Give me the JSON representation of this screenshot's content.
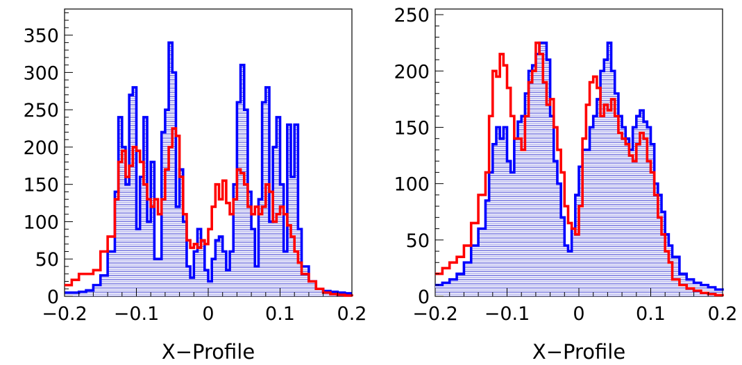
{
  "chart_data": [
    {
      "type": "histogram",
      "xlabel": "X−Profile",
      "ylabel": "",
      "xlim": [
        -0.2,
        0.2
      ],
      "ylim": [
        0,
        385
      ],
      "x_ticks": [
        -0.2,
        -0.1,
        0,
        0.1,
        0.2
      ],
      "x_tick_labels": [
        "−0.2",
        "−0.1",
        "0",
        "0.1",
        "0.2"
      ],
      "y_ticks": [
        0,
        50,
        100,
        150,
        200,
        250,
        300,
        350
      ],
      "y_tick_labels": [
        "0",
        "50",
        "100",
        "150",
        "200",
        "250",
        "300",
        "350"
      ],
      "grid": false,
      "series": [
        {
          "color": "#0000ff",
          "fill": "hatched",
          "x": [
            -0.2,
            -0.19,
            -0.18,
            -0.17,
            -0.16,
            -0.15,
            -0.14,
            -0.13,
            -0.125,
            -0.12,
            -0.115,
            -0.11,
            -0.105,
            -0.1,
            -0.095,
            -0.09,
            -0.085,
            -0.08,
            -0.075,
            -0.07,
            -0.065,
            -0.06,
            -0.055,
            -0.05,
            -0.045,
            -0.04,
            -0.035,
            -0.03,
            -0.025,
            -0.02,
            -0.015,
            -0.01,
            -0.005,
            0,
            0.005,
            0.01,
            0.015,
            0.02,
            0.025,
            0.03,
            0.035,
            0.04,
            0.045,
            0.05,
            0.055,
            0.06,
            0.065,
            0.07,
            0.075,
            0.08,
            0.085,
            0.09,
            0.095,
            0.1,
            0.105,
            0.11,
            0.115,
            0.12,
            0.125,
            0.13,
            0.14,
            0.15,
            0.16,
            0.17,
            0.18,
            0.19,
            0.2
          ],
          "y": [
            5,
            5,
            6,
            8,
            15,
            28,
            60,
            140,
            240,
            200,
            150,
            270,
            280,
            90,
            160,
            240,
            100,
            180,
            50,
            50,
            220,
            250,
            340,
            300,
            120,
            170,
            100,
            40,
            25,
            60,
            90,
            75,
            35,
            20,
            50,
            75,
            80,
            60,
            35,
            60,
            150,
            260,
            310,
            250,
            140,
            90,
            40,
            130,
            260,
            280,
            100,
            200,
            240,
            150,
            60,
            230,
            160,
            230,
            90,
            40,
            20,
            10,
            7,
            6,
            5,
            4,
            4
          ]
        },
        {
          "color": "#ff0000",
          "fill": "none",
          "x": [
            -0.2,
            -0.19,
            -0.18,
            -0.17,
            -0.16,
            -0.15,
            -0.14,
            -0.13,
            -0.125,
            -0.12,
            -0.115,
            -0.11,
            -0.105,
            -0.1,
            -0.095,
            -0.09,
            -0.085,
            -0.08,
            -0.075,
            -0.07,
            -0.065,
            -0.06,
            -0.055,
            -0.05,
            -0.045,
            -0.04,
            -0.035,
            -0.03,
            -0.025,
            -0.02,
            -0.015,
            -0.01,
            -0.005,
            0,
            0.005,
            0.01,
            0.015,
            0.02,
            0.025,
            0.03,
            0.035,
            0.04,
            0.045,
            0.05,
            0.055,
            0.06,
            0.065,
            0.07,
            0.075,
            0.08,
            0.085,
            0.09,
            0.095,
            0.1,
            0.105,
            0.11,
            0.115,
            0.12,
            0.125,
            0.13,
            0.14,
            0.15,
            0.16,
            0.17,
            0.18,
            0.19,
            0.2
          ],
          "y": [
            15,
            22,
            30,
            30,
            35,
            60,
            80,
            130,
            180,
            195,
            160,
            175,
            200,
            195,
            180,
            150,
            130,
            120,
            130,
            110,
            130,
            170,
            200,
            225,
            215,
            160,
            110,
            75,
            65,
            70,
            65,
            75,
            70,
            90,
            120,
            150,
            130,
            155,
            125,
            110,
            130,
            170,
            165,
            150,
            120,
            110,
            120,
            110,
            120,
            150,
            140,
            100,
            110,
            120,
            110,
            95,
            80,
            60,
            45,
            30,
            20,
            10,
            5,
            3,
            2,
            1,
            0
          ]
        }
      ]
    },
    {
      "type": "histogram",
      "xlabel": "X−Profile",
      "ylabel": "",
      "xlim": [
        -0.2,
        0.2
      ],
      "ylim": [
        0,
        255
      ],
      "x_ticks": [
        -0.2,
        -0.1,
        0,
        0.1,
        0.2
      ],
      "x_tick_labels": [
        "−0.2",
        "−0.1",
        "0",
        "0.1",
        "0.2"
      ],
      "y_ticks": [
        0,
        50,
        100,
        150,
        200,
        250
      ],
      "y_tick_labels": [
        "0",
        "50",
        "100",
        "150",
        "200",
        "250"
      ],
      "grid": false,
      "series": [
        {
          "color": "#0000ff",
          "fill": "hatched",
          "x": [
            -0.2,
            -0.19,
            -0.18,
            -0.17,
            -0.16,
            -0.15,
            -0.14,
            -0.13,
            -0.125,
            -0.12,
            -0.115,
            -0.11,
            -0.105,
            -0.1,
            -0.095,
            -0.09,
            -0.085,
            -0.08,
            -0.075,
            -0.07,
            -0.065,
            -0.06,
            -0.055,
            -0.05,
            -0.045,
            -0.04,
            -0.035,
            -0.03,
            -0.025,
            -0.02,
            -0.015,
            -0.01,
            -0.005,
            0,
            0.005,
            0.01,
            0.015,
            0.02,
            0.025,
            0.03,
            0.035,
            0.04,
            0.045,
            0.05,
            0.055,
            0.06,
            0.065,
            0.07,
            0.075,
            0.08,
            0.085,
            0.09,
            0.095,
            0.1,
            0.105,
            0.11,
            0.115,
            0.12,
            0.125,
            0.13,
            0.14,
            0.15,
            0.16,
            0.17,
            0.18,
            0.19,
            0.2
          ],
          "y": [
            10,
            12,
            15,
            20,
            30,
            45,
            60,
            85,
            110,
            135,
            150,
            140,
            150,
            120,
            110,
            140,
            155,
            160,
            180,
            200,
            205,
            215,
            225,
            225,
            210,
            160,
            120,
            100,
            70,
            45,
            40,
            60,
            90,
            115,
            130,
            130,
            150,
            160,
            175,
            200,
            210,
            225,
            200,
            180,
            160,
            150,
            140,
            130,
            150,
            160,
            165,
            155,
            150,
            135,
            100,
            90,
            75,
            55,
            45,
            35,
            20,
            15,
            12,
            10,
            8,
            6,
            5
          ]
        },
        {
          "color": "#ff0000",
          "fill": "none",
          "x": [
            -0.2,
            -0.19,
            -0.18,
            -0.17,
            -0.16,
            -0.15,
            -0.14,
            -0.13,
            -0.125,
            -0.12,
            -0.115,
            -0.11,
            -0.105,
            -0.1,
            -0.095,
            -0.09,
            -0.085,
            -0.08,
            -0.075,
            -0.07,
            -0.065,
            -0.06,
            -0.055,
            -0.05,
            -0.045,
            -0.04,
            -0.035,
            -0.03,
            -0.025,
            -0.02,
            -0.015,
            -0.01,
            -0.005,
            0,
            0.005,
            0.01,
            0.015,
            0.02,
            0.025,
            0.03,
            0.035,
            0.04,
            0.045,
            0.05,
            0.055,
            0.06,
            0.065,
            0.07,
            0.075,
            0.08,
            0.085,
            0.09,
            0.095,
            0.1,
            0.105,
            0.11,
            0.115,
            0.12,
            0.125,
            0.13,
            0.14,
            0.15,
            0.16,
            0.17,
            0.18,
            0.19,
            0.2
          ],
          "y": [
            20,
            25,
            30,
            35,
            45,
            65,
            90,
            110,
            160,
            200,
            195,
            215,
            205,
            185,
            160,
            140,
            140,
            130,
            160,
            190,
            200,
            225,
            215,
            190,
            170,
            175,
            150,
            130,
            110,
            80,
            65,
            60,
            55,
            80,
            140,
            170,
            190,
            195,
            185,
            160,
            170,
            165,
            175,
            160,
            145,
            140,
            135,
            125,
            120,
            135,
            145,
            140,
            120,
            110,
            90,
            70,
            55,
            40,
            30,
            15,
            10,
            7,
            5,
            3,
            2,
            1,
            0
          ]
        }
      ]
    }
  ]
}
